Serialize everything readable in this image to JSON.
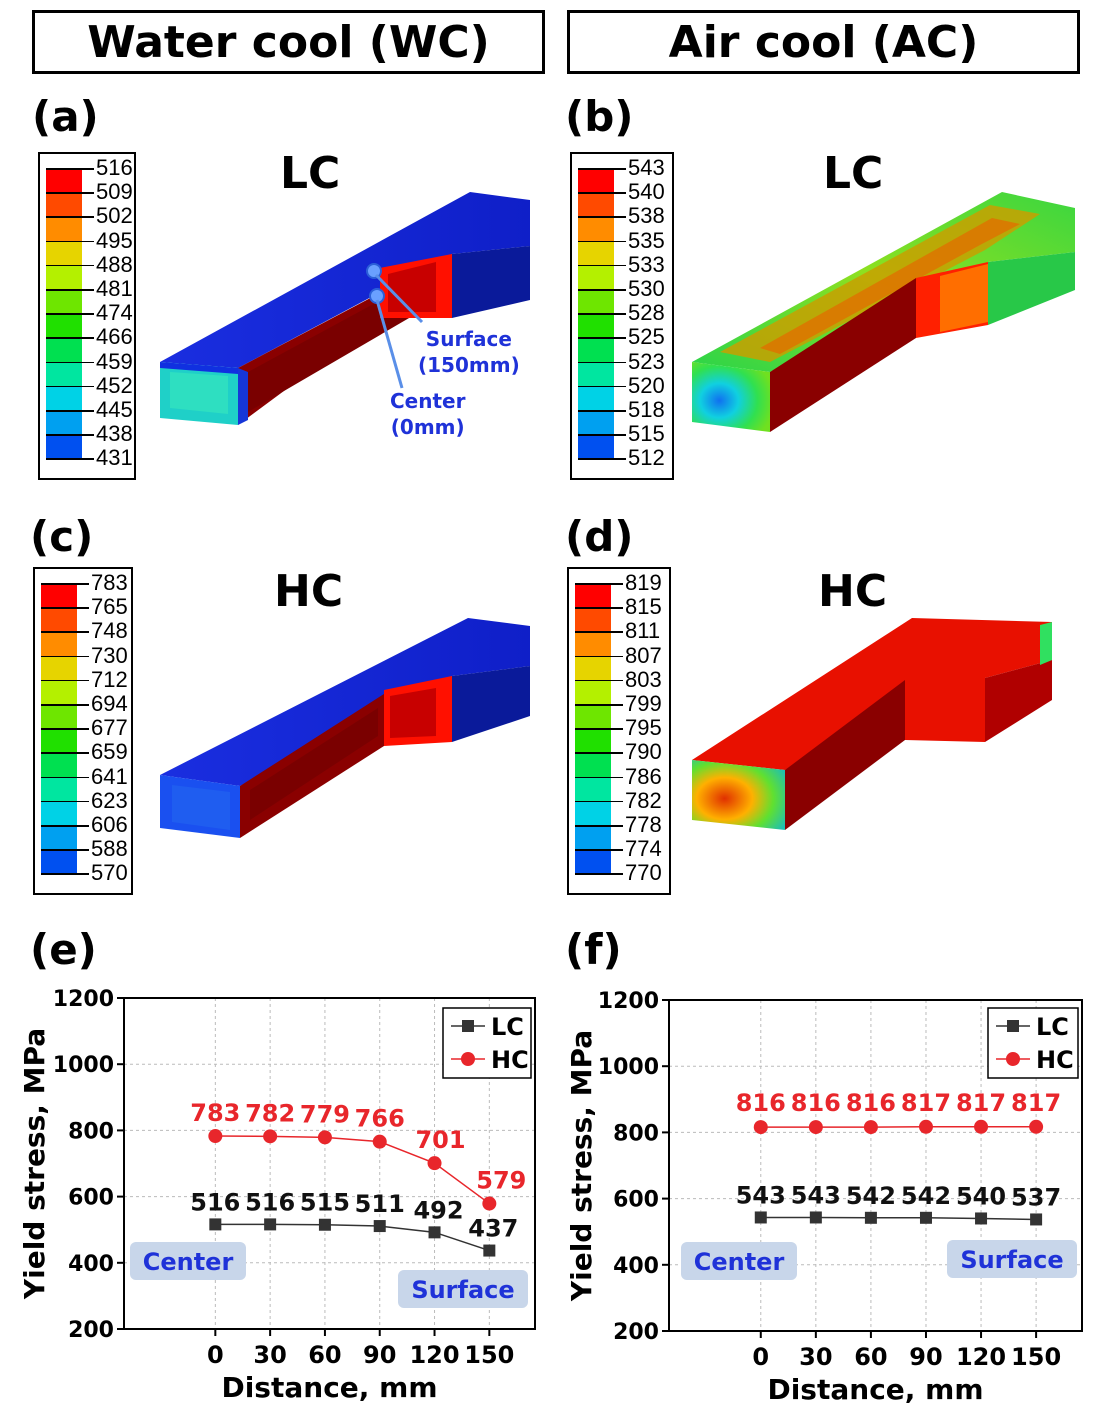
{
  "headers": {
    "wc": "Water cool (WC)",
    "ac": "Air cool (AC)"
  },
  "panels": [
    {
      "id": "a",
      "label": "(a)",
      "title": "LC",
      "colorbar": [
        "516",
        "509",
        "502",
        "495",
        "488",
        "481",
        "474",
        "466",
        "459",
        "452",
        "445",
        "438",
        "431"
      ]
    },
    {
      "id": "b",
      "label": "(b)",
      "title": "LC",
      "colorbar": [
        "543",
        "540",
        "538",
        "535",
        "533",
        "530",
        "528",
        "525",
        "523",
        "520",
        "518",
        "515",
        "512"
      ]
    },
    {
      "id": "c",
      "label": "(c)",
      "title": "HC",
      "colorbar": [
        "783",
        "765",
        "748",
        "730",
        "712",
        "694",
        "677",
        "659",
        "641",
        "623",
        "606",
        "588",
        "570"
      ]
    },
    {
      "id": "d",
      "label": "(d)",
      "title": "HC",
      "colorbar": [
        "819",
        "815",
        "811",
        "807",
        "803",
        "799",
        "795",
        "790",
        "786",
        "782",
        "778",
        "774",
        "770"
      ]
    }
  ],
  "colorbar_colors": [
    "#ff0000",
    "#ff4a00",
    "#ff8c00",
    "#e6d400",
    "#b4f000",
    "#6ee600",
    "#20e000",
    "#00e050",
    "#00e6a0",
    "#00d2e6",
    "#00a0f0",
    "#0050f0",
    "#0000ff"
  ],
  "annotations": {
    "surface": "Surface",
    "surface_dist": "(150mm)",
    "center": "Center",
    "center_dist": "(0mm)"
  },
  "chart_data": [
    {
      "id": "e",
      "label": "(e)",
      "type": "line",
      "xlabel": "Distance, mm",
      "ylabel": "Yield stress, MPa",
      "x": [
        0,
        30,
        60,
        90,
        120,
        150
      ],
      "xlim": [
        -50,
        175
      ],
      "ylim": [
        200,
        1200
      ],
      "yticks": [
        200,
        400,
        600,
        800,
        1000,
        1200
      ],
      "grid": true,
      "legend_position": "top-right",
      "series": [
        {
          "name": "LC",
          "color": "#333333",
          "marker": "square",
          "values": [
            516,
            516,
            515,
            511,
            492,
            437
          ],
          "labels": [
            "516",
            "516",
            "515",
            "511",
            "492",
            "437"
          ]
        },
        {
          "name": "HC",
          "color": "#e8262b",
          "marker": "circle",
          "values": [
            783,
            782,
            779,
            766,
            701,
            579
          ],
          "labels": [
            "783",
            "782",
            "779",
            "766",
            "701",
            "579"
          ]
        }
      ],
      "regions": {
        "left": "Center",
        "right": "Surface"
      }
    },
    {
      "id": "f",
      "label": "(f)",
      "type": "line",
      "xlabel": "Distance, mm",
      "ylabel": "Yield stress, MPa",
      "x": [
        0,
        30,
        60,
        90,
        120,
        150
      ],
      "xlim": [
        -50,
        175
      ],
      "ylim": [
        200,
        1200
      ],
      "yticks": [
        200,
        400,
        600,
        800,
        1000,
        1200
      ],
      "grid": true,
      "legend_position": "top-right",
      "series": [
        {
          "name": "LC",
          "color": "#333333",
          "marker": "square",
          "values": [
            543,
            543,
            542,
            542,
            540,
            537
          ],
          "labels": [
            "543",
            "543",
            "542",
            "542",
            "540",
            "537"
          ]
        },
        {
          "name": "HC",
          "color": "#e8262b",
          "marker": "circle",
          "values": [
            816,
            816,
            816,
            817,
            817,
            817
          ],
          "labels": [
            "816",
            "816",
            "816",
            "817",
            "817",
            "817"
          ]
        }
      ],
      "regions": {
        "left": "Center",
        "right": "Surface"
      }
    }
  ]
}
